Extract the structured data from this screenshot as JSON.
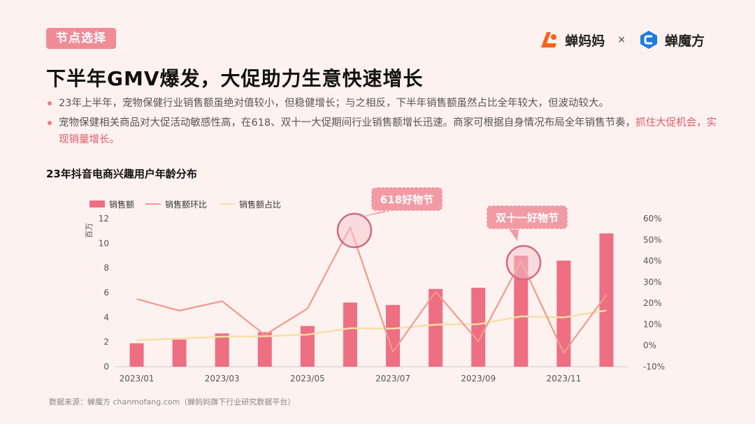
{
  "header": {
    "tag": "节点选择",
    "brand1": "蝉妈妈",
    "separator": "×",
    "brand2": "蝉魔方"
  },
  "title": "下半年GMV爆发，大促助力生意快速增长",
  "bullets": [
    {
      "text": "23年上半年，宠物保健行业销售额虽绝对值较小，但稳健增长；与之相反，下半年销售额虽然占比全年较大，但波动较大。"
    },
    {
      "text": "宠物保健相关商品对大促活动敏感性高，在618、双十一大促期间行业销售额增长迅速。商家可根据自身情况布局全年销售节奏，",
      "highlight": "抓住大促机会，实现销量增长。"
    }
  ],
  "chart_title": "23年抖音电商兴趣用户年龄分布",
  "source": "数据来源：蝉魔方  chanmofang.com（蝉妈妈旗下行业研究数据平台）",
  "colors": {
    "bar": "#ee6e82",
    "mom": "#f2998f",
    "share": "#f8dfa6",
    "accent": "#f08c96"
  },
  "chart_data": {
    "type": "bar",
    "categories": [
      "2023/01",
      "2023/02",
      "2023/03",
      "2023/04",
      "2023/05",
      "2023/06",
      "2023/07",
      "2023/08",
      "2023/09",
      "2023/10",
      "2023/11",
      "2023/12"
    ],
    "x_tick_labels": [
      "2023/01",
      "2023/03",
      "2023/05",
      "2023/07",
      "2023/09",
      "2023/11"
    ],
    "ylabel": "百万",
    "ylim": [
      0,
      12
    ],
    "yticks": [
      0,
      2,
      4,
      6,
      8,
      10,
      12
    ],
    "y2lim": [
      -10,
      60
    ],
    "y2ticks": [
      "-10%",
      "0%",
      "10%",
      "20%",
      "30%",
      "40%",
      "50%",
      "60%"
    ],
    "y2tick_values": [
      -10,
      0,
      10,
      20,
      30,
      40,
      50,
      60
    ],
    "legend_position": "top-left",
    "series": [
      {
        "name": "销售额",
        "type": "bar",
        "axis": "left",
        "values": [
          1.9,
          2.2,
          2.7,
          2.8,
          3.3,
          5.2,
          5.0,
          6.3,
          6.4,
          9.0,
          8.6,
          10.8
        ]
      },
      {
        "name": "销售额环比",
        "type": "line",
        "axis": "right",
        "values": [
          22,
          16.5,
          21,
          5,
          17.5,
          56,
          -3,
          25.5,
          2,
          40,
          -3.5,
          24
        ]
      },
      {
        "name": "销售额占比",
        "type": "line",
        "axis": "right",
        "values": [
          2.5,
          3.3,
          4.2,
          4.4,
          5.2,
          8.2,
          8.0,
          9.9,
          10.1,
          13.8,
          13.3,
          16.6
        ]
      }
    ],
    "annotations": [
      {
        "label": "618好物节",
        "index": 5
      },
      {
        "label": "双十一好物节",
        "index": 9
      }
    ]
  }
}
